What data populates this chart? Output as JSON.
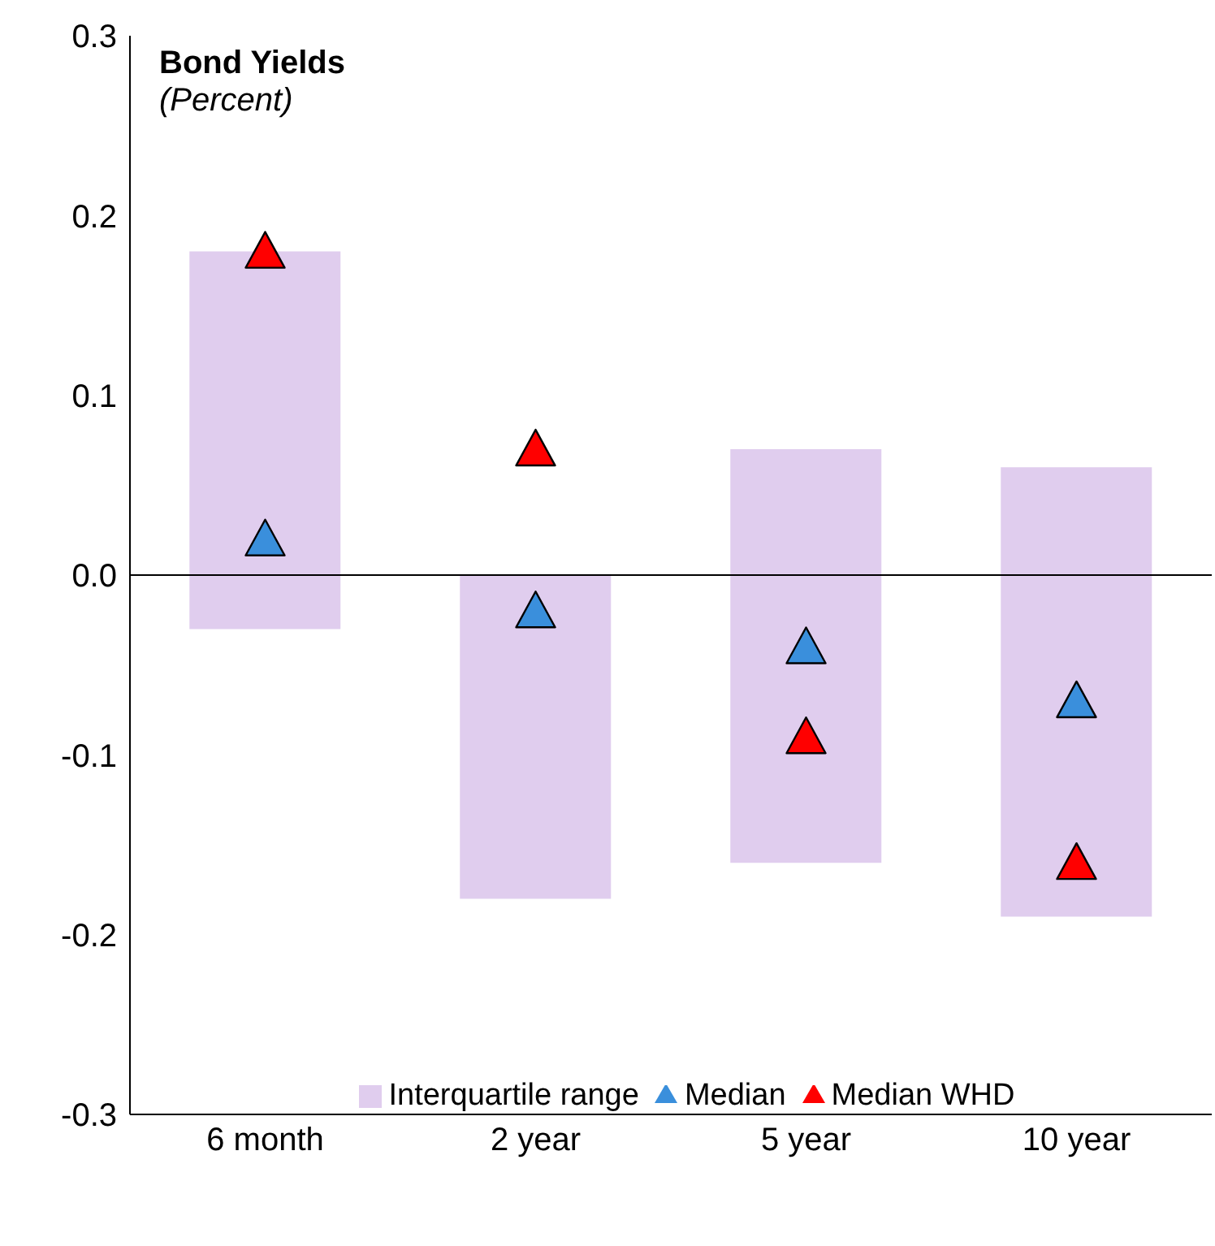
{
  "chart_data": {
    "type": "bar",
    "title": "Bond Yields",
    "subtitle": "(Percent)",
    "categories": [
      "6 month",
      "2 year",
      "5 year",
      "10 year"
    ],
    "series": [
      {
        "name": "Interquartile range",
        "color": "#e0cdee",
        "base": [
          -0.03,
          -0.18,
          -0.16,
          -0.19
        ],
        "values": [
          0.21,
          0.18,
          0.23,
          0.25
        ]
      },
      {
        "name": "Median",
        "type": "scatter",
        "color": "#3a8fdc",
        "values": [
          0.02,
          -0.02,
          -0.04,
          -0.07
        ]
      },
      {
        "name": "Median WHD",
        "type": "scatter",
        "color": "#ff0000",
        "values": [
          0.18,
          0.07,
          -0.09,
          -0.16
        ]
      }
    ],
    "ylim": [
      -0.3,
      0.3
    ],
    "yticks": [
      -0.3,
      -0.2,
      -0.1,
      {
        "value": 0,
        "label": "0.0"
      },
      0.1,
      0.2,
      0.3
    ],
    "ref_lines": [
      {
        "axis": "y",
        "value": 0,
        "color": "#000000"
      }
    ],
    "marker": "triangle",
    "legend": "bottom"
  }
}
